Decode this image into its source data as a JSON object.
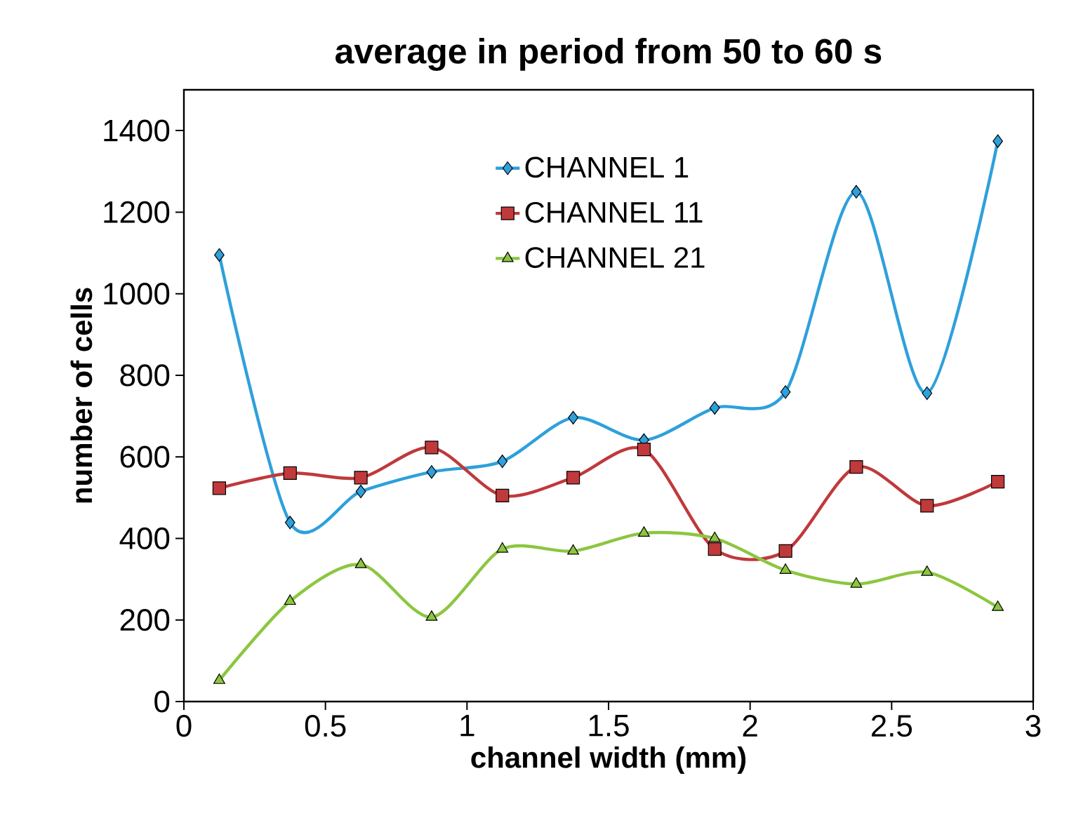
{
  "chart_data": {
    "type": "line",
    "title": "average in period from 50 to 60 s",
    "xlabel": "channel width (mm)",
    "ylabel": "number of cells",
    "x": [
      0.125,
      0.375,
      0.625,
      0.875,
      1.125,
      1.375,
      1.625,
      1.875,
      2.125,
      2.375,
      2.625,
      2.875
    ],
    "series": [
      {
        "name": "CHANNEL 1",
        "color": "#2ea0dc",
        "marker": "diamond",
        "values": [
          1095,
          439,
          515,
          563,
          589,
          696,
          641,
          720,
          759,
          1250,
          756,
          1374
        ]
      },
      {
        "name": "CHANNEL 11",
        "color": "#c0393b",
        "marker": "square",
        "values": [
          523,
          560,
          549,
          623,
          505,
          549,
          618,
          374,
          369,
          575,
          480,
          539
        ]
      },
      {
        "name": "CHANNEL 21",
        "color": "#8cc63f",
        "marker": "triangle",
        "values": [
          52,
          246,
          336,
          207,
          374,
          369,
          413,
          400,
          322,
          288,
          317,
          231
        ]
      }
    ],
    "xlim": [
      0,
      3
    ],
    "xticks": [
      0,
      0.5,
      1,
      1.5,
      2,
      2.5,
      3
    ],
    "ylim": [
      0,
      1500
    ],
    "yticks": [
      0,
      200,
      400,
      600,
      800,
      1000,
      1200,
      1400
    ],
    "grid": false,
    "legend": "top"
  }
}
